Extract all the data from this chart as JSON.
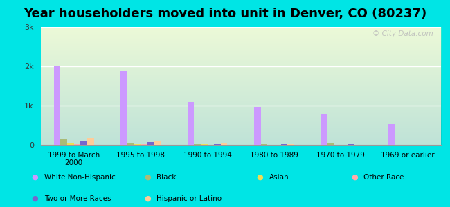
{
  "title": "Year householders moved into unit in Denver, CO (80237)",
  "categories": [
    "1999 to March\n2000",
    "1995 to 1998",
    "1990 to 1994",
    "1980 to 1989",
    "1970 to 1979",
    "1969 or earlier"
  ],
  "series": {
    "White Non-Hispanic": [
      2020,
      1870,
      1080,
      960,
      790,
      530
    ],
    "Black": [
      150,
      60,
      20,
      15,
      60,
      5
    ],
    "Asian": [
      50,
      30,
      10,
      5,
      5,
      5
    ],
    "Other Race": [
      10,
      10,
      5,
      5,
      5,
      5
    ],
    "Two or More Races": [
      110,
      70,
      20,
      20,
      10,
      5
    ],
    "Hispanic or Latino": [
      170,
      110,
      55,
      30,
      5,
      5
    ]
  },
  "colors": {
    "White Non-Hispanic": "#cc99ff",
    "Black": "#aabb77",
    "Asian": "#eedd55",
    "Other Race": "#ffaaaa",
    "Two or More Races": "#7766cc",
    "Hispanic or Latino": "#ffcc99"
  },
  "ylim": [
    0,
    3000
  ],
  "yticks": [
    0,
    1000,
    2000,
    3000
  ],
  "ytick_labels": [
    "0",
    "1k",
    "2k",
    "3k"
  ],
  "background_outer": "#00e5e5",
  "watermark": "© City-Data.com",
  "title_fontsize": 13,
  "bar_width": 0.1
}
